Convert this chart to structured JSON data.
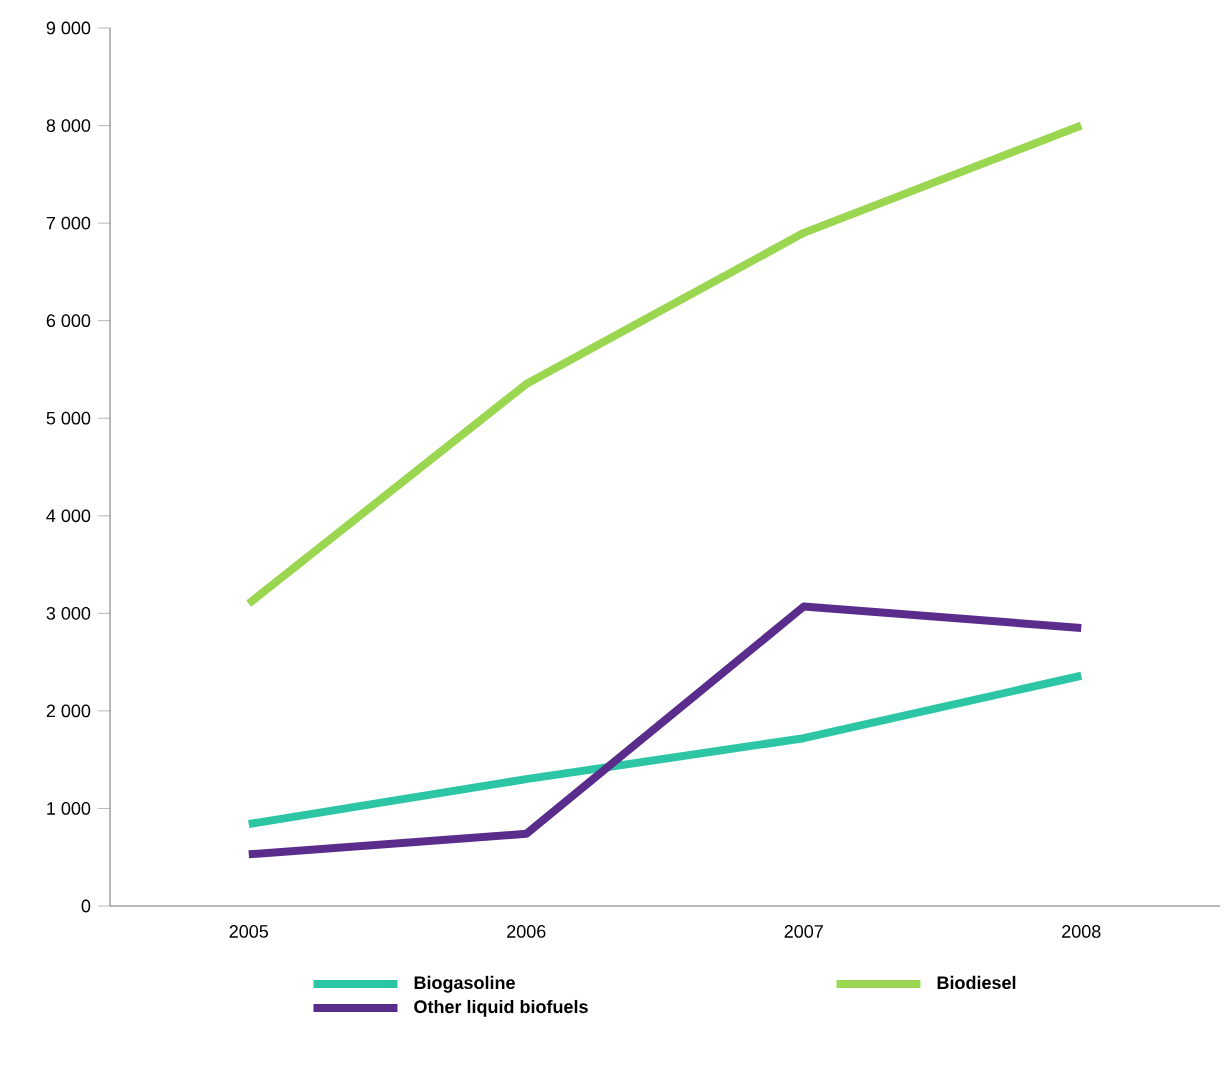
{
  "chart_data": {
    "type": "line",
    "categories": [
      "2005",
      "2006",
      "2007",
      "2008"
    ],
    "series": [
      {
        "name": "Biogasoline",
        "color": "#2cc6a4",
        "values": [
          840,
          1300,
          1720,
          2360
        ]
      },
      {
        "name": "Biodiesel",
        "color": "#9bd651",
        "values": [
          3100,
          5350,
          6900,
          8000
        ]
      },
      {
        "name": "Other liquid biofuels",
        "color": "#5a2d8c",
        "values": [
          530,
          740,
          3070,
          2850
        ]
      }
    ],
    "ylim": [
      0,
      9000
    ],
    "yticks": [
      0,
      {
        "value": 1000,
        "label": "1 000"
      },
      {
        "value": 2000,
        "label": "2 000"
      },
      {
        "value": 3000,
        "label": "3 000"
      },
      {
        "value": 4000,
        "label": "4 000"
      },
      {
        "value": 5000,
        "label": "5 000"
      },
      {
        "value": 6000,
        "label": "6 000"
      },
      {
        "value": 7000,
        "label": "7 000"
      },
      {
        "value": 8000,
        "label": "8 000"
      },
      {
        "value": 9000,
        "label": "9 000"
      }
    ],
    "grid": false,
    "legend": "bottom"
  }
}
